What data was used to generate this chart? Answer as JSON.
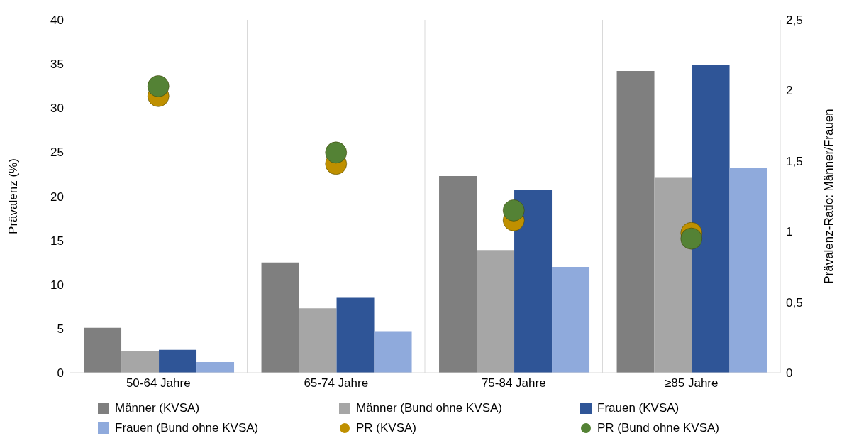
{
  "chart_data": {
    "type": "bar",
    "categories": [
      "50-64 Jahre",
      "65-74 Jahre",
      "75-84 Jahre",
      "≥85 Jahre"
    ],
    "ylabel": "Prävalenz (%)",
    "y2label": "Prävalenz-Ratio: Männer/Frauen",
    "ylim": [
      0,
      40
    ],
    "yticks": [
      0,
      5,
      10,
      15,
      20,
      25,
      30,
      35,
      40
    ],
    "y2lim": [
      0,
      2.5
    ],
    "y2ticks": [
      0,
      {
        "value": 0.5,
        "label": "0,5"
      },
      1,
      {
        "value": 1.5,
        "label": "1,5"
      },
      2,
      {
        "value": 2.5,
        "label": "2,5"
      }
    ],
    "grid": "x",
    "legend": "bottom",
    "marker": "circle",
    "series": [
      {
        "name": "Männer (KVSA)",
        "color": "#7f7f7f",
        "values": [
          5.1,
          12.5,
          22.3,
          34.2
        ]
      },
      {
        "name": "Männer (Bund ohne KVSA)",
        "color": "#a6a6a6",
        "values": [
          2.5,
          7.3,
          13.9,
          22.1
        ]
      },
      {
        "name": "Frauen (KVSA)",
        "color": "#2f5597",
        "values": [
          2.6,
          8.5,
          20.7,
          34.9
        ]
      },
      {
        "name": "Frauen (Bund ohne KVSA)",
        "color": "#8faadc",
        "values": [
          1.2,
          4.7,
          12.0,
          23.2
        ]
      },
      {
        "name": "PR (KVSA)",
        "type": "scatter",
        "axis": "y2",
        "color": "#bf9000",
        "values": [
          1.96,
          1.48,
          1.08,
          0.99
        ]
      },
      {
        "name": "PR (Bund ohne KVSA)",
        "type": "scatter",
        "axis": "y2",
        "color": "#548235",
        "values": [
          2.03,
          1.56,
          1.15,
          0.95
        ]
      }
    ]
  }
}
